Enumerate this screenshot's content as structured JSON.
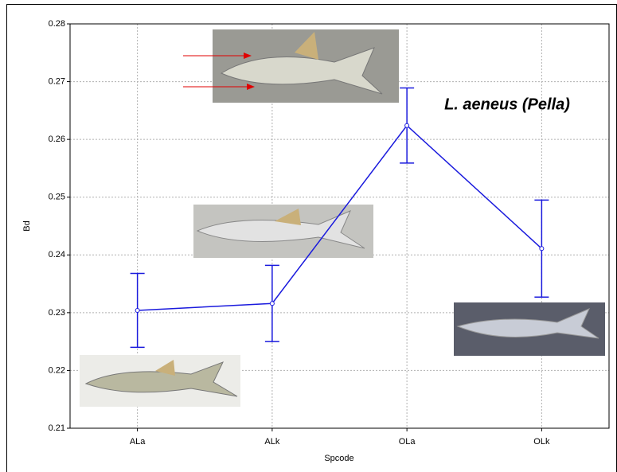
{
  "chart_data": {
    "type": "line",
    "xlabel": "Spcode",
    "ylabel": "Bd",
    "annotation": "L. aeneus (Pella)",
    "categories": [
      "ALa",
      "ALk",
      "OLa",
      "OLk"
    ],
    "series": [
      {
        "name": "Bd",
        "color": "#1a1add",
        "values": [
          0.2304,
          0.2316,
          0.2624,
          0.2411
        ],
        "errors": [
          0.0064,
          0.0066,
          0.0065,
          0.0084
        ]
      }
    ],
    "ylim": [
      0.21,
      0.28
    ],
    "yticks": [
      0.21,
      0.22,
      0.23,
      0.24,
      0.25,
      0.26,
      0.27,
      0.28
    ],
    "grid": true
  }
}
